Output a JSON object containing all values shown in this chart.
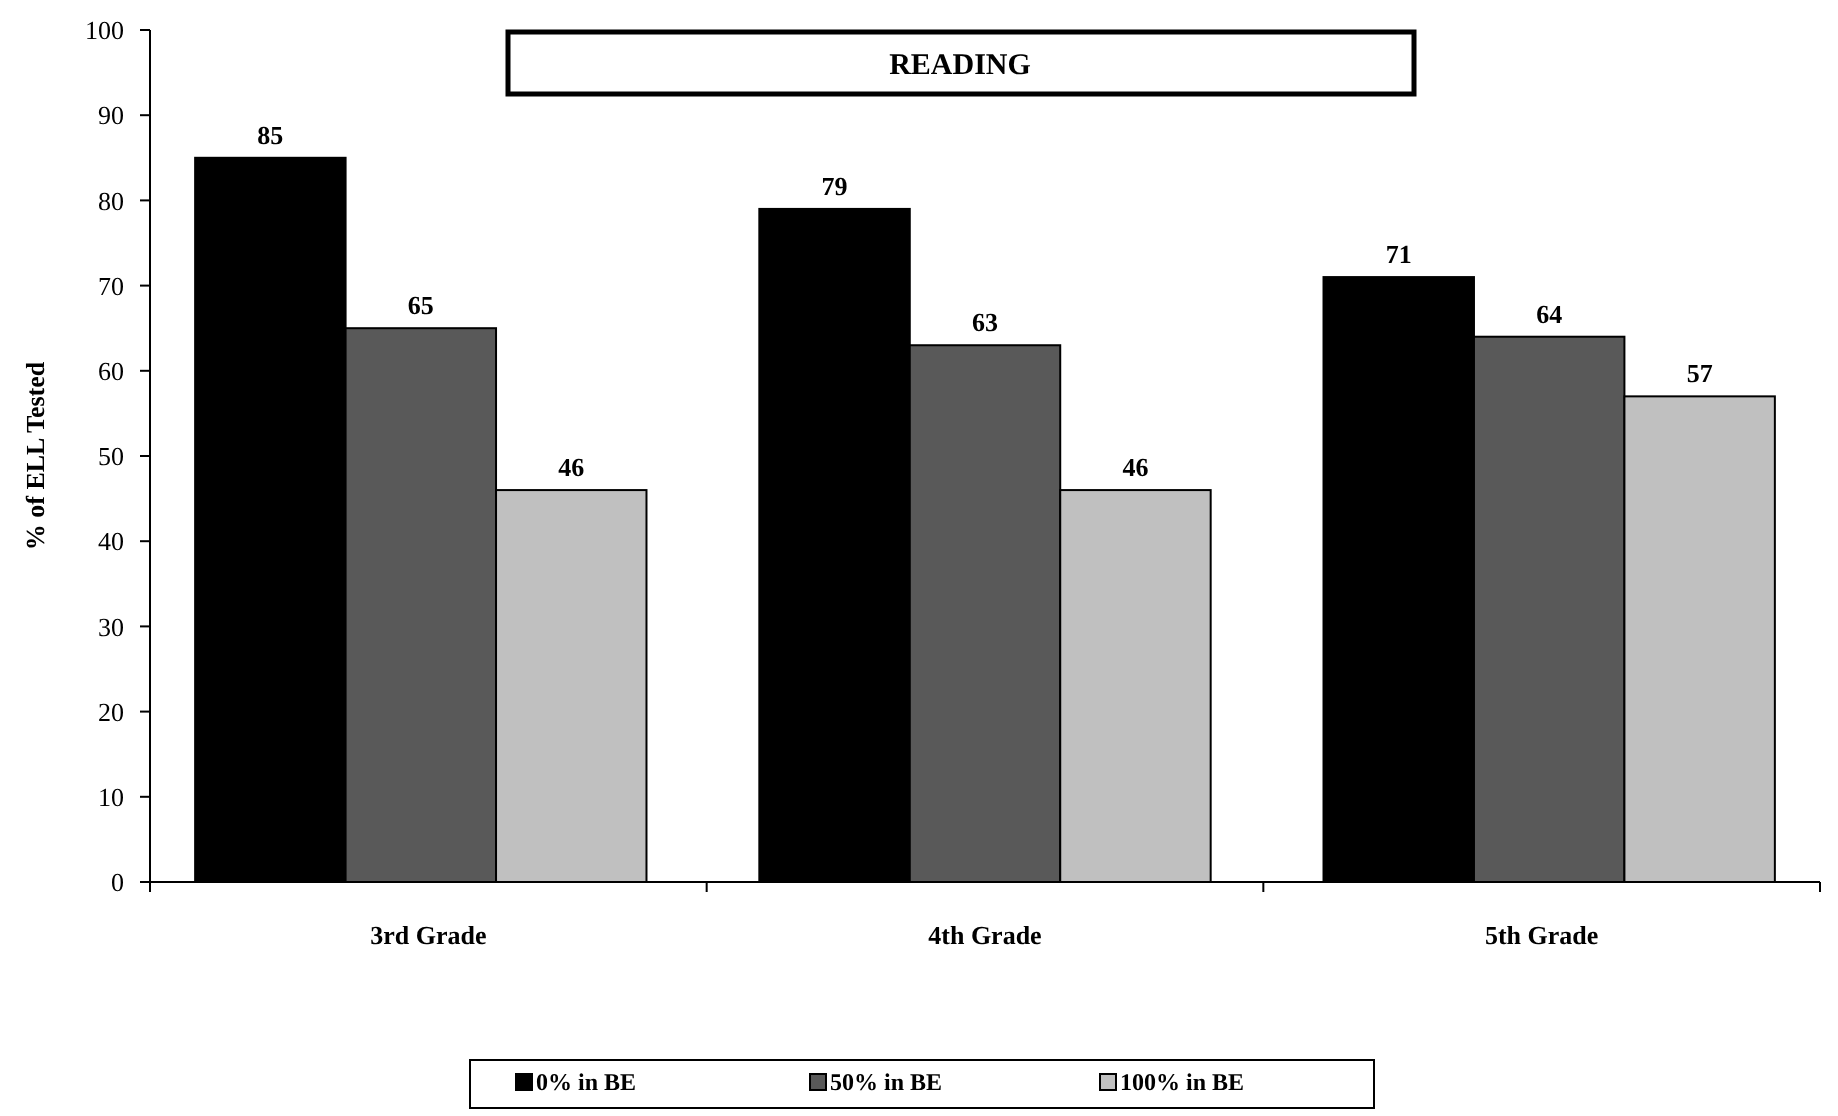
{
  "chart_data": {
    "type": "bar",
    "title": "READING",
    "ylabel": "% of ELL Tested",
    "categories": [
      "3rd Grade",
      "4th Grade",
      "5th Grade"
    ],
    "series": [
      {
        "name": "0% in BE",
        "color": "#000000",
        "values": [
          85,
          79,
          71
        ]
      },
      {
        "name": "50% in BE",
        "color": "#595959",
        "values": [
          65,
          63,
          64
        ]
      },
      {
        "name": "100% in BE",
        "color": "#c0c0c0",
        "values": [
          46,
          46,
          57
        ]
      }
    ],
    "ylim": [
      0,
      100
    ],
    "yticks": [
      0,
      10,
      20,
      30,
      40,
      50,
      60,
      70,
      80,
      90,
      100
    ],
    "grid": false,
    "legend": "bottom",
    "data_labels": true
  }
}
